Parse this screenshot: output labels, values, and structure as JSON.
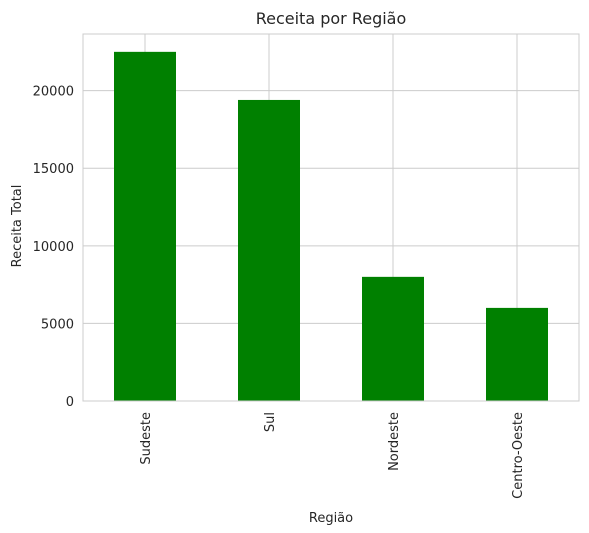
{
  "chart_data": {
    "type": "bar",
    "title": "Receita por Região",
    "xlabel": "Região",
    "ylabel": "Receita Total",
    "categories": [
      "Sudeste",
      "Sul",
      "Nordeste",
      "Centro-Oeste"
    ],
    "values": [
      22500,
      19400,
      8000,
      6000
    ],
    "ylim": [
      0,
      23650
    ],
    "yticks": [
      0,
      5000,
      10000,
      15000,
      20000
    ],
    "ytick_labels": [
      "0",
      "5000",
      "10000",
      "15000",
      "20000"
    ],
    "bar_color": "#008000",
    "grid": true,
    "grid_color": "#cccccc",
    "legend": "none"
  }
}
